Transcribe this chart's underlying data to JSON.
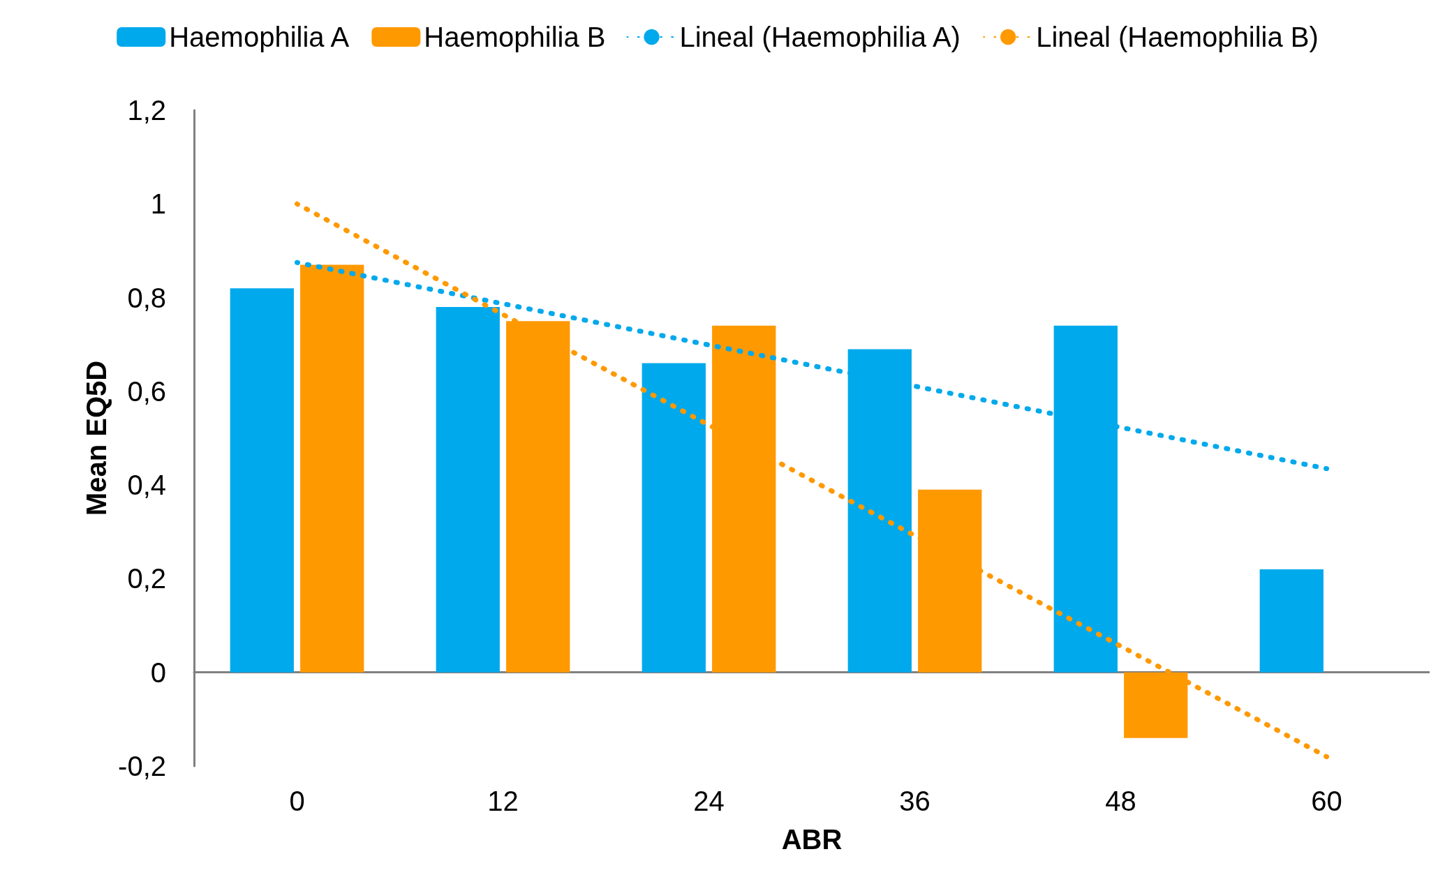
{
  "chart_data": {
    "type": "bar",
    "xlabel": "ABR",
    "ylabel": "Mean EQ5D",
    "categories": [
      "0",
      "12",
      "24",
      "36",
      "48",
      "60"
    ],
    "series": [
      {
        "name": "Haemophilia A",
        "color": "#00a9ec",
        "values": [
          0.82,
          0.78,
          0.66,
          0.69,
          0.74,
          0.22
        ]
      },
      {
        "name": "Haemophilia B",
        "color": "#ff9900",
        "values": [
          0.87,
          0.75,
          0.74,
          0.39,
          -0.14,
          null
        ]
      },
      {
        "name": "Lineal (Haemophilia A)",
        "type": "line",
        "color": "#00a9ec",
        "line_style": "dotted",
        "marker": "none",
        "values": [
          0.875,
          null,
          null,
          null,
          null,
          0.435
        ]
      },
      {
        "name": "Lineal (Haemophilia B)",
        "type": "line",
        "color": "#ff9900",
        "line_style": "dotted",
        "marker": "none",
        "values": [
          1.0,
          null,
          null,
          null,
          null,
          -0.18
        ]
      }
    ],
    "ylim": [
      -0.2,
      1.2
    ],
    "yticks": [
      {
        "value": -0.2,
        "label": "-0,2"
      },
      0,
      {
        "value": 0.2,
        "label": "0,2"
      },
      {
        "value": 0.4,
        "label": "0,4"
      },
      {
        "value": 0.6,
        "label": "0,6"
      },
      {
        "value": 0.8,
        "label": "0,8"
      },
      1,
      {
        "value": 1.2,
        "label": "1,2"
      }
    ],
    "legend": "top"
  }
}
